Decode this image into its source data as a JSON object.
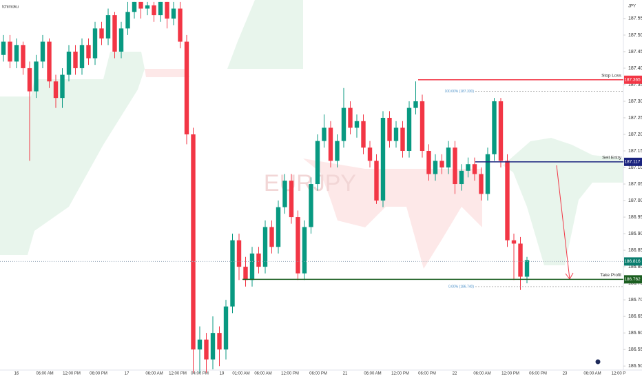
{
  "chart_data": {
    "type": "candlestick",
    "title": "EURJPY",
    "indicator": "Ichimoku",
    "currency": "JPY",
    "x_labels": [
      "16",
      "06:00 AM",
      "12:00 PM",
      "06:00 PM",
      "17",
      "06:00 AM",
      "12:00 PM",
      "04:00 PM",
      "19",
      "01:00 AM",
      "06:00 AM",
      "12:00 PM",
      "06:00 PM",
      "21",
      "06:00 AM",
      "12:00 PM",
      "06:00 PM",
      "22",
      "06:00 AM",
      "12:00 PM",
      "06:00 PM",
      "23",
      "06:00 AM",
      "12:00 P"
    ],
    "up_color": "#089981",
    "down_color": "#f23645",
    "open": [
      187.44,
      187.48,
      187.42,
      187.47,
      187.4,
      187.33,
      187.42,
      187.48,
      187.36,
      187.31,
      187.38,
      187.45,
      187.4,
      187.47,
      187.43,
      187.52,
      187.49,
      187.56,
      187.45,
      187.52,
      187.57,
      187.6,
      187.58,
      187.59,
      187.56,
      187.6,
      187.55,
      187.58,
      187.48,
      187.2,
      186.55,
      186.58,
      186.52,
      186.6,
      186.55,
      186.68,
      186.88,
      186.8,
      186.76,
      186.84,
      186.8,
      186.92,
      186.86,
      186.98,
      187.06,
      186.95,
      186.78,
      186.92,
      187.05,
      187.18,
      187.22,
      187.12,
      187.18,
      187.28,
      187.22,
      187.24,
      187.16,
      187.12,
      187.0,
      187.25,
      187.18,
      187.22,
      187.15,
      187.28,
      187.3,
      187.15,
      187.08,
      187.12,
      187.1,
      187.16,
      187.05,
      187.09,
      187.11,
      187.08,
      187.02,
      187.14,
      187.3,
      187.12,
      186.88,
      186.87,
      186.77
    ],
    "high": [
      187.5,
      187.5,
      187.49,
      187.48,
      187.42,
      187.44,
      187.5,
      187.49,
      187.38,
      187.4,
      187.47,
      187.47,
      187.49,
      187.49,
      187.54,
      187.54,
      187.58,
      187.57,
      187.54,
      187.6,
      187.6,
      187.6,
      187.6,
      187.6,
      187.6,
      187.6,
      187.6,
      187.6,
      187.5,
      187.22,
      186.62,
      186.6,
      186.65,
      186.62,
      186.7,
      186.9,
      186.9,
      186.83,
      186.86,
      186.86,
      186.94,
      186.94,
      187.0,
      187.08,
      187.08,
      186.97,
      186.94,
      187.07,
      187.2,
      187.26,
      187.24,
      187.2,
      187.34,
      187.3,
      187.26,
      187.26,
      187.18,
      187.14,
      187.27,
      187.27,
      187.24,
      187.24,
      187.3,
      187.36,
      187.32,
      187.17,
      187.14,
      187.14,
      187.18,
      187.18,
      187.11,
      187.13,
      187.13,
      187.1,
      187.16,
      187.31,
      187.31,
      187.14,
      186.9,
      186.89,
      186.83
    ],
    "low": [
      187.42,
      187.4,
      187.4,
      187.38,
      187.12,
      187.31,
      187.4,
      187.34,
      187.28,
      187.28,
      187.36,
      187.38,
      187.38,
      187.41,
      187.41,
      187.47,
      187.47,
      187.43,
      187.43,
      187.5,
      187.55,
      187.55,
      187.56,
      187.54,
      187.54,
      187.52,
      187.53,
      187.46,
      187.17,
      186.48,
      186.48,
      186.48,
      186.49,
      186.5,
      186.52,
      186.66,
      186.76,
      186.74,
      186.74,
      186.78,
      186.78,
      186.84,
      186.84,
      186.96,
      186.93,
      186.76,
      186.76,
      186.9,
      187.03,
      187.16,
      187.1,
      187.1,
      187.16,
      187.2,
      187.19,
      187.14,
      187.1,
      186.99,
      186.98,
      187.16,
      187.16,
      187.13,
      187.13,
      187.26,
      187.13,
      187.06,
      187.06,
      187.08,
      187.08,
      187.02,
      187.03,
      187.07,
      187.06,
      187.0,
      187.0,
      187.12,
      187.1,
      186.86,
      186.76,
      186.73,
      186.75
    ],
    "close": [
      187.48,
      187.42,
      187.47,
      187.4,
      187.33,
      187.42,
      187.48,
      187.36,
      187.31,
      187.38,
      187.45,
      187.4,
      187.47,
      187.43,
      187.52,
      187.49,
      187.56,
      187.45,
      187.52,
      187.57,
      187.6,
      187.58,
      187.59,
      187.56,
      187.6,
      187.55,
      187.58,
      187.48,
      187.2,
      186.55,
      186.58,
      186.52,
      186.6,
      186.55,
      186.68,
      186.88,
      186.8,
      186.76,
      186.84,
      186.8,
      186.92,
      186.86,
      186.98,
      187.06,
      186.95,
      186.78,
      186.92,
      187.05,
      187.18,
      187.22,
      187.12,
      187.18,
      187.28,
      187.22,
      187.24,
      187.16,
      187.12,
      187.0,
      187.25,
      187.18,
      187.22,
      187.15,
      187.28,
      187.3,
      187.15,
      187.08,
      187.12,
      187.1,
      187.16,
      187.05,
      187.09,
      187.11,
      187.08,
      187.02,
      187.14,
      187.3,
      187.12,
      186.88,
      186.87,
      186.77,
      186.82
    ],
    "ylim": [
      186.49,
      187.606
    ],
    "yticks": [
      {
        "value": 186.5,
        "label": "186.500"
      },
      {
        "value": 186.55,
        "label": "186.550"
      },
      {
        "value": 186.6,
        "label": "186.600"
      },
      {
        "value": 186.65,
        "label": "186.650"
      },
      {
        "value": 186.7,
        "label": "186.700"
      },
      {
        "value": 186.75,
        "label": "186.750"
      },
      {
        "value": 186.8,
        "label": "186.800"
      },
      {
        "value": 186.85,
        "label": "186.850"
      },
      {
        "value": 186.9,
        "label": "186.900"
      },
      {
        "value": 186.95,
        "label": "186.950"
      },
      {
        "value": 187.0,
        "label": "187.000"
      },
      {
        "value": 187.05,
        "label": "187.050"
      },
      {
        "value": 187.1,
        "label": "187.100"
      },
      {
        "value": 187.15,
        "label": "187.150"
      },
      {
        "value": 187.2,
        "label": "187.200"
      },
      {
        "value": 187.25,
        "label": "187.250"
      },
      {
        "value": 187.3,
        "label": "187.300"
      },
      {
        "value": 187.35,
        "label": "187.350"
      },
      {
        "value": 187.4,
        "label": "187.400"
      },
      {
        "value": 187.45,
        "label": "187.450"
      },
      {
        "value": 187.5,
        "label": "187.500"
      },
      {
        "value": 187.55,
        "label": "187.550"
      }
    ],
    "levels": [
      {
        "name": "Stop Loss",
        "value": 187.365,
        "color": "#f23645"
      },
      {
        "name": "Sell Entry",
        "value": 187.117,
        "color": "#1a237e"
      },
      {
        "name": "Take Profit",
        "value": 186.762,
        "color": "#1b5e20"
      }
    ],
    "current_price": 186.816,
    "fib": [
      {
        "label": "100.00% (187.330)",
        "value": 187.33
      },
      {
        "label": "0.00% (186.740)",
        "value": 186.74
      }
    ]
  }
}
